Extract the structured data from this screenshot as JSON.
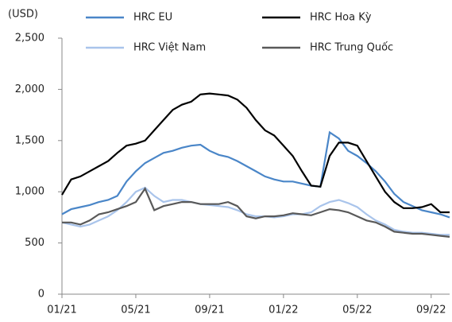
{
  "chart_data": {
    "type": "line",
    "ylabel": "(USD)",
    "categories": [
      "01/21",
      null,
      null,
      null,
      null,
      null,
      null,
      null,
      "05/21",
      null,
      null,
      null,
      null,
      null,
      null,
      null,
      "09/21",
      null,
      null,
      null,
      null,
      null,
      null,
      null,
      "01/22",
      null,
      null,
      null,
      null,
      null,
      null,
      null,
      "05/22",
      null,
      null,
      null,
      null,
      null,
      null,
      null,
      "09/22",
      null,
      null
    ],
    "series": [
      {
        "name": "HRC EU",
        "color": "#4a86c8",
        "values": [
          780,
          830,
          850,
          870,
          900,
          920,
          960,
          1100,
          1200,
          1280,
          1330,
          1380,
          1400,
          1430,
          1450,
          1460,
          1400,
          1360,
          1340,
          1300,
          1250,
          1200,
          1150,
          1120,
          1100,
          1100,
          1080,
          1060,
          1050,
          1580,
          1520,
          1400,
          1350,
          1280,
          1200,
          1100,
          980,
          900,
          860,
          820,
          800,
          780,
          750
        ]
      },
      {
        "name": "HRC Hoa Kỳ",
        "color": "#000000",
        "values": [
          970,
          1120,
          1150,
          1200,
          1250,
          1300,
          1380,
          1450,
          1470,
          1500,
          1600,
          1700,
          1800,
          1850,
          1880,
          1950,
          1960,
          1950,
          1940,
          1900,
          1820,
          1700,
          1600,
          1550,
          1450,
          1350,
          1200,
          1060,
          1050,
          1350,
          1480,
          1480,
          1450,
          1300,
          1150,
          1000,
          900,
          840,
          840,
          850,
          880,
          800,
          800
        ]
      },
      {
        "name": "HRC Việt Nam",
        "color": "#a9c4eb",
        "values": [
          700,
          680,
          660,
          680,
          720,
          760,
          820,
          900,
          1000,
          1040,
          960,
          900,
          920,
          920,
          900,
          880,
          870,
          860,
          850,
          820,
          780,
          760,
          760,
          750,
          760,
          780,
          780,
          800,
          860,
          900,
          920,
          890,
          850,
          780,
          720,
          680,
          630,
          610,
          600,
          600,
          590,
          580,
          580
        ]
      },
      {
        "name": "HRC Trung Quốc",
        "color": "#595959",
        "values": [
          700,
          700,
          680,
          720,
          780,
          800,
          830,
          860,
          900,
          1030,
          820,
          860,
          880,
          900,
          900,
          880,
          880,
          880,
          900,
          860,
          760,
          740,
          760,
          760,
          770,
          790,
          780,
          770,
          800,
          830,
          820,
          800,
          760,
          720,
          700,
          660,
          610,
          600,
          590,
          590,
          580,
          570,
          560
        ]
      }
    ],
    "ylim": [
      0,
      2500
    ],
    "yticks": [
      0,
      500,
      {
        "value": 1000,
        "label": "1,000"
      },
      {
        "value": 1500,
        "label": "1,500"
      },
      {
        "value": 2000,
        "label": "2,000"
      },
      {
        "value": 2500,
        "label": "2,500"
      }
    ],
    "grid": false
  }
}
